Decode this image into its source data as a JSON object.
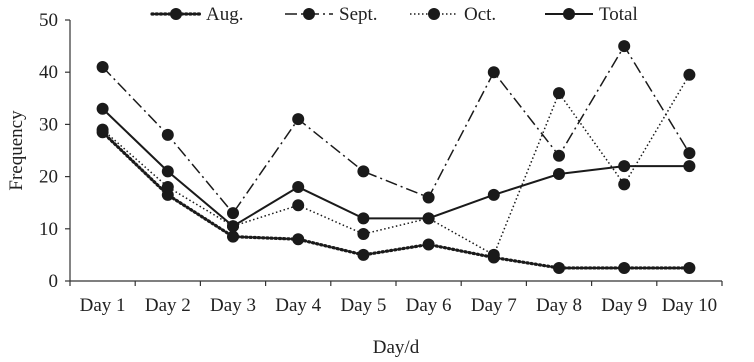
{
  "chart_data": {
    "type": "line",
    "categories": [
      "Day 1",
      "Day 2",
      "Day 3",
      "Day 4",
      "Day 5",
      "Day 6",
      "Day 7",
      "Day 8",
      "Day 9",
      "Day 10"
    ],
    "series": [
      {
        "name": "Aug.",
        "style": "dotted-bold",
        "values": [
          28.5,
          16.5,
          8.5,
          8,
          5,
          7,
          4.5,
          2.5,
          2.5,
          2.5
        ]
      },
      {
        "name": "Sept.",
        "style": "dash-dot",
        "values": [
          41,
          28,
          13,
          31,
          21,
          16,
          40,
          24,
          45,
          24.5
        ]
      },
      {
        "name": "Oct.",
        "style": "dotted",
        "values": [
          29,
          18,
          10.5,
          14.5,
          9,
          12,
          5,
          36,
          18.5,
          39.5
        ]
      },
      {
        "name": "Total",
        "style": "solid",
        "values": [
          33,
          21,
          10.5,
          18,
          12,
          12,
          16.5,
          20.5,
          22,
          22
        ]
      }
    ],
    "xlabel": "Day/d",
    "ylabel": "Frequency",
    "ylim": [
      0,
      50
    ],
    "yticks": [
      0,
      10,
      20,
      30,
      40,
      50
    ],
    "grid": false,
    "legend_position": "top",
    "colors": {
      "line": "#1a1a1a",
      "marker": "#1a1a1a"
    }
  }
}
